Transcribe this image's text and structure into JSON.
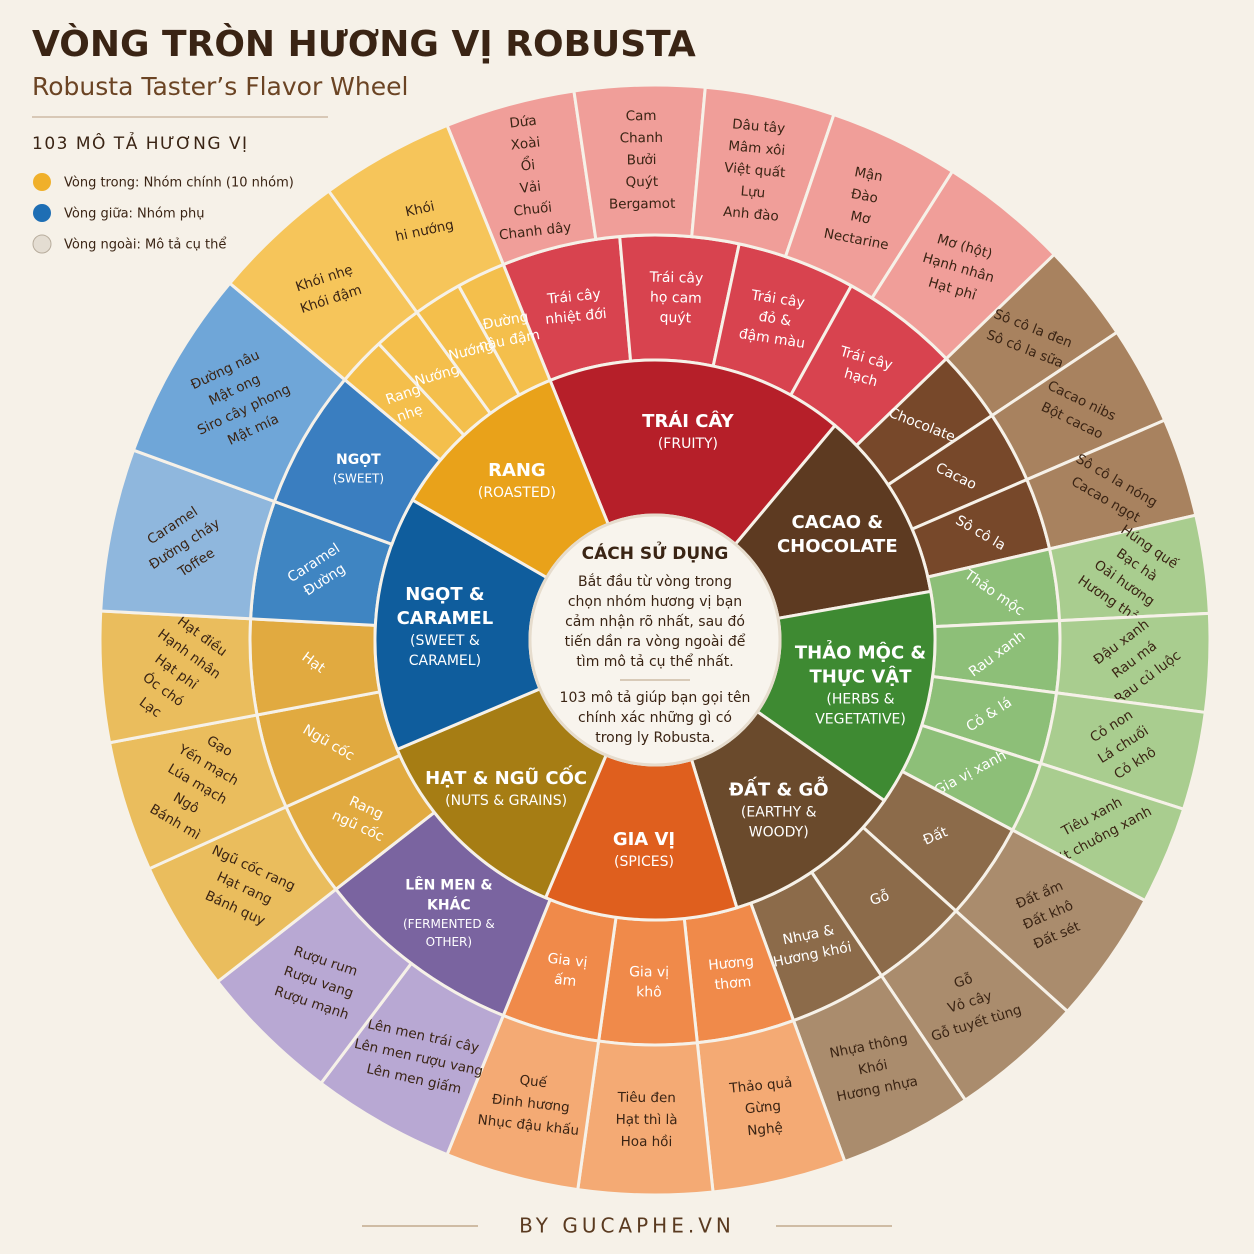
{
  "header": {
    "title": "VÒNG TRÒN HƯƠNG VỊ ROBUSTA",
    "subtitle": "Robusta Taster’s Flavor Wheel",
    "count_label": "103 MÔ TẢ HƯƠNG VỊ"
  },
  "legend": [
    "Vòng trong: Nhóm chính (10 nhóm)",
    "Vòng giữa: Nhóm phụ",
    "Vòng ngoài: Mô tả cụ thể"
  ],
  "center": {
    "title": "CÁCH SỬ DỤNG",
    "paragraph_1": [
      "Bắt đầu từ vòng trong",
      "chọn nhóm hương vị bạn",
      "cảm nhận rõ nhất, sau đó",
      "tiến dần ra vòng ngoài để",
      "tìm mô tả cụ thể nhất."
    ],
    "paragraph_2": [
      "103 mô tả giúp bạn gọi tên",
      "chính xác những gì có",
      "trong ly Robusta."
    ]
  },
  "wheel": {
    "groups": [
      {
        "name": [
          "TRÁI CÂY"
        ],
        "english": [
          "(FRUITY)"
        ],
        "middle": [
          [
            "Trái cây",
            "nhiệt đới"
          ],
          [
            "Trái cây",
            "họ cam",
            "quýt"
          ],
          [
            "Trái cây",
            "đỏ &",
            "đậm màu"
          ],
          [
            "Trái cây",
            "hạch"
          ]
        ],
        "outer": [
          [
            "Dứa",
            "Xoài",
            "Ổi",
            "Vải",
            "Chuối",
            "Chanh dây"
          ],
          [
            "Cam",
            "Chanh",
            "Bưởi",
            "Quýt",
            "Bergamot"
          ],
          [
            "Dâu tây",
            "Mâm xôi",
            "Việt quất",
            "Lựu",
            "Anh đào"
          ],
          [
            "Mận",
            "Đào",
            "Mơ",
            "Nectarine"
          ],
          [
            "Mơ (hột)",
            "Hạnh nhân",
            "Hạt phỉ"
          ]
        ]
      },
      {
        "name": [
          "CACAO &",
          "CHOCOLATE"
        ],
        "middle": [
          [
            "Chocolate"
          ],
          [
            "Cacao"
          ],
          [
            "Sô cô la"
          ]
        ],
        "outer": [
          [
            "Sô cô la đen",
            "Sô cô la sữa"
          ],
          [
            "Cacao nibs",
            "Bột cacao"
          ],
          [
            "Sô cô la nóng",
            "Cacao ngọt"
          ]
        ]
      },
      {
        "name": [
          "THẢO MỘC &",
          "THỰC VẬT"
        ],
        "english": [
          "(HERBS &",
          "VEGETATIVE)"
        ],
        "middle": [
          [
            "Thảo mộc"
          ],
          [
            "Rau xanh"
          ],
          [
            "Cỏ & lá"
          ],
          [
            "Gia vị xanh"
          ]
        ],
        "outer": [
          [
            "Húng quế",
            "Bạc hà",
            "Oải hương",
            "Hương thảo"
          ],
          [
            "Đậu xanh",
            "Rau má",
            "Rau củ luộc"
          ],
          [
            "Cỏ non",
            "Lá chuối",
            "Cỏ khô"
          ],
          [
            "Tiêu xanh",
            "Ớt chuông xanh"
          ]
        ]
      },
      {
        "name": [
          "ĐẤT & GỖ"
        ],
        "english": [
          "(EARTHY &",
          "WOODY)"
        ],
        "middle": [
          [
            "Đất"
          ],
          [
            "Gỗ"
          ],
          [
            "Nhựa &",
            "Hương khói"
          ]
        ],
        "outer": [
          [
            "Đất ẩm",
            "Đất khô",
            "Đất sét"
          ],
          [
            "Gỗ",
            "Vỏ cây",
            "Gỗ tuyết tùng"
          ],
          [
            "Nhựa thông",
            "Khói",
            "Hương nhựa"
          ]
        ]
      },
      {
        "name": [
          "GIA VỊ"
        ],
        "english": [
          "(SPICES)"
        ],
        "middle": [
          [
            "Hương",
            "thơm"
          ],
          [
            "Gia vị",
            "khô"
          ],
          [
            "Gia vị",
            "ấm"
          ]
        ],
        "outer": [
          [
            "Thảo quả",
            "Gừng",
            "Nghệ"
          ],
          [
            "Tiêu đen",
            "Hạt thì là",
            "Hoa hồi"
          ],
          [
            "Quế",
            "Đinh hương",
            "Nhục đậu khấu"
          ]
        ]
      },
      {
        "name": [
          "LÊN MEN &",
          "KHÁC"
        ],
        "english": [
          "(FERMENTED &",
          "OTHER)"
        ],
        "middle": [],
        "outer": [
          [
            "Lên men trái cây",
            "Lên men rượu vang",
            "Lên men giấm"
          ],
          [
            "Rượu rum",
            "Rượu vang",
            "Rượu mạnh"
          ]
        ]
      },
      {
        "name": [
          "HẠT & NGŨ CỐC"
        ],
        "english": [
          "(NUTS & GRAINS)"
        ],
        "middle": [
          [
            "Rang",
            "ngũ cốc"
          ],
          [
            "Ngũ cốc"
          ],
          [
            "Hạt"
          ]
        ],
        "outer": [
          [
            "Ngũ cốc rang",
            "Hạt rang",
            "Bánh quy"
          ],
          [
            "Gạo",
            "Yến mạch",
            "Lúa mạch",
            "Ngô",
            "Bánh mì"
          ],
          [
            "Hạt điều",
            "Hạnh nhân",
            "Hạt phỉ",
            "Óc chó",
            "Lạc"
          ]
        ]
      },
      {
        "name": [
          "NGỌT &",
          "CARAMEL"
        ],
        "english": [
          "(SWEET &",
          "CARAMEL)"
        ],
        "middle": [
          [
            "Caramel",
            "Đường"
          ]
        ],
        "outer": [
          [
            "Caramel",
            "Đường cháy",
            "Toffee"
          ]
        ]
      },
      {
        "name": [
          "NGỌT"
        ],
        "english": [
          "(SWEET)"
        ],
        "middle": [],
        "outer": [
          [
            "Đường nâu",
            "Mật ong",
            "Siro cây phong",
            "Mật mía"
          ]
        ]
      },
      {
        "name": [
          "RANG"
        ],
        "english": [
          "(ROASTED)"
        ],
        "middle": [
          [
            "Rang",
            "nhẹ"
          ],
          [
            "Nướng"
          ],
          [
            "Nướng"
          ],
          [
            "Đường",
            "nâu đậm"
          ]
        ],
        "outer": [
          [
            "Khói nhẹ",
            "Khói đậm"
          ],
          [
            "Khói",
            "hi nướng"
          ]
        ]
      }
    ]
  },
  "footer": "BY GUCAPHE.VN"
}
